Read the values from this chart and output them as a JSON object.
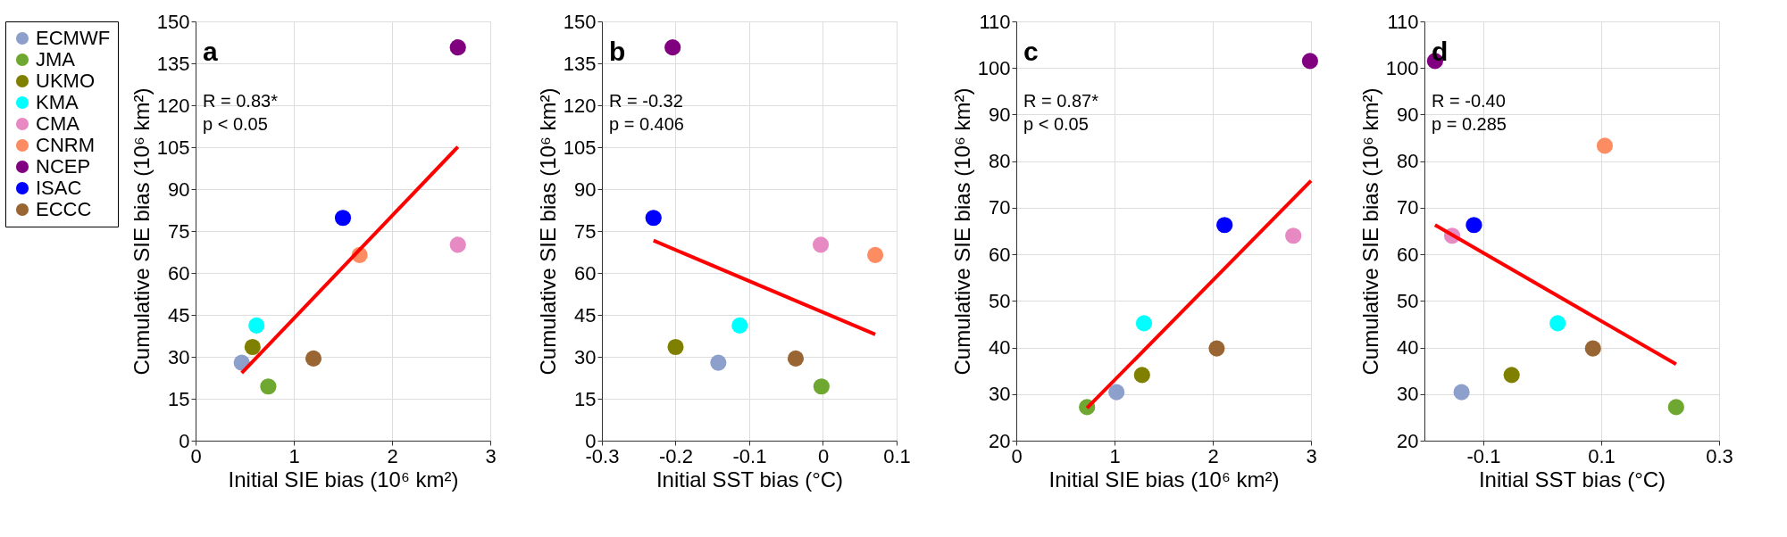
{
  "chart_data": [
    {
      "type": "scatter",
      "xlabel": "Initial SIE bias (10⁶ km²)",
      "ylabel": "Cumulative SIE bias (10⁶ km²)",
      "xlim": [
        0,
        3
      ],
      "ylim": [
        0,
        150
      ],
      "xticks": [
        0,
        1,
        2,
        3
      ],
      "yticks": [
        0,
        15,
        30,
        45,
        60,
        75,
        90,
        105,
        120,
        135,
        150
      ],
      "grid": true,
      "legend": "left",
      "marker": "circle",
      "annotations": [
        "a",
        "R = 0.83*",
        "p < 0.05"
      ],
      "series": [
        {
          "name": "ECMWF",
          "color": "#8da0cb",
          "x": [
            0.47
          ],
          "values": [
            27.9
          ]
        },
        {
          "name": "JMA",
          "color": "#6fa830",
          "x": [
            0.74
          ],
          "values": [
            19.4
          ]
        },
        {
          "name": "UKMO",
          "color": "#7f7f00",
          "x": [
            0.58
          ],
          "values": [
            33.5
          ]
        },
        {
          "name": "KMA",
          "color": "#00ffff",
          "x": [
            0.62
          ],
          "values": [
            41.2
          ]
        },
        {
          "name": "CMA",
          "color": "#e78ac3",
          "x": [
            2.67
          ],
          "values": [
            70.1
          ]
        },
        {
          "name": "CNRM",
          "color": "#fc8d62",
          "x": [
            1.67
          ],
          "values": [
            66.4
          ]
        },
        {
          "name": "NCEP",
          "color": "#800080",
          "x": [
            2.67
          ],
          "values": [
            140.7
          ]
        },
        {
          "name": "ISAC",
          "color": "#0000ff",
          "x": [
            1.5
          ],
          "values": [
            79.7
          ]
        },
        {
          "name": "ECCC",
          "color": "#996633",
          "x": [
            1.2
          ],
          "values": [
            29.4
          ]
        },
        {
          "type": "line",
          "marker": "none",
          "color": "#ff0000",
          "x": [
            0.47,
            2.67
          ],
          "values": [
            24.2,
            105.1
          ]
        }
      ]
    },
    {
      "type": "scatter",
      "xlabel": "Initial SST bias (°C)",
      "ylabel": "Cumulative SIE bias (10⁶ km²)",
      "xlim": [
        -0.3,
        0.1
      ],
      "ylim": [
        0,
        150
      ],
      "xticks": [
        -0.3,
        -0.2,
        -0.1,
        0,
        0.1
      ],
      "yticks": [
        0,
        15,
        30,
        45,
        60,
        75,
        90,
        105,
        120,
        135,
        150
      ],
      "grid": true,
      "marker": "circle",
      "annotations": [
        "b",
        "R = -0.32",
        "p = 0.406"
      ],
      "series": [
        {
          "color": "#8da0cb",
          "x": [
            -0.142
          ],
          "values": [
            27.9
          ]
        },
        {
          "color": "#6fa830",
          "x": [
            -0.002
          ],
          "values": [
            19.4
          ]
        },
        {
          "color": "#7f7f00",
          "x": [
            -0.2
          ],
          "values": [
            33.5
          ]
        },
        {
          "color": "#00ffff",
          "x": [
            -0.113
          ],
          "values": [
            41.2
          ]
        },
        {
          "color": "#e78ac3",
          "x": [
            -0.003
          ],
          "values": [
            70.1
          ]
        },
        {
          "color": "#fc8d62",
          "x": [
            0.071
          ],
          "values": [
            66.4
          ]
        },
        {
          "color": "#800080",
          "x": [
            -0.204
          ],
          "values": [
            140.7
          ]
        },
        {
          "color": "#0000ff",
          "x": [
            -0.23
          ],
          "values": [
            79.7
          ]
        },
        {
          "color": "#996633",
          "x": [
            -0.037
          ],
          "values": [
            29.4
          ]
        },
        {
          "type": "line",
          "marker": "none",
          "color": "#ff0000",
          "x": [
            -0.23,
            0.071
          ],
          "values": [
            71.6,
            38.0
          ]
        }
      ]
    },
    {
      "type": "scatter",
      "xlabel": "Initial SIE bias (10⁶ km²)",
      "ylabel": "Cumulative SIE bias (10⁶ km²)",
      "xlim": [
        0,
        3
      ],
      "ylim": [
        20,
        110
      ],
      "xticks": [
        0,
        1,
        2,
        3
      ],
      "yticks": [
        20,
        30,
        40,
        50,
        60,
        70,
        80,
        90,
        100,
        110
      ],
      "grid": true,
      "marker": "circle",
      "annotations": [
        "c",
        "R = 0.87*",
        "p < 0.05"
      ],
      "series": [
        {
          "color": "#8da0cb",
          "x": [
            1.02
          ],
          "values": [
            30.4
          ]
        },
        {
          "color": "#6fa830",
          "x": [
            0.72
          ],
          "values": [
            27.2
          ]
        },
        {
          "color": "#7f7f00",
          "x": [
            1.28
          ],
          "values": [
            34.1
          ]
        },
        {
          "color": "#00ffff",
          "x": [
            1.3
          ],
          "values": [
            45.2
          ]
        },
        {
          "color": "#e78ac3",
          "x": [
            2.82
          ],
          "values": [
            64.0
          ]
        },
        {
          "color": "#800080",
          "x": [
            2.99
          ],
          "values": [
            101.5
          ]
        },
        {
          "color": "#0000ff",
          "x": [
            2.12
          ],
          "values": [
            66.3
          ]
        },
        {
          "color": "#996633",
          "x": [
            2.04
          ],
          "values": [
            39.8
          ]
        },
        {
          "type": "line",
          "marker": "none",
          "color": "#ff0000",
          "x": [
            0.72,
            3.0
          ],
          "values": [
            27.0,
            75.8
          ]
        }
      ]
    },
    {
      "type": "scatter",
      "xlabel": "Initial SST bias (°C)",
      "ylabel": "Cumulative SIE bias (10⁶ km²)",
      "xlim": [
        -0.2,
        0.3
      ],
      "ylim": [
        20,
        110
      ],
      "xticks": [
        -0.1,
        0.1,
        0.3
      ],
      "yticks": [
        20,
        30,
        40,
        50,
        60,
        70,
        80,
        90,
        100,
        110
      ],
      "grid": true,
      "marker": "circle",
      "annotations": [
        "d",
        "R = -0.40",
        "p = 0.285"
      ],
      "series": [
        {
          "color": "#8da0cb",
          "x": [
            -0.137
          ],
          "values": [
            30.4
          ]
        },
        {
          "color": "#6fa830",
          "x": [
            0.227
          ],
          "values": [
            27.2
          ]
        },
        {
          "color": "#7f7f00",
          "x": [
            -0.052
          ],
          "values": [
            34.1
          ]
        },
        {
          "color": "#00ffff",
          "x": [
            0.026
          ],
          "values": [
            45.2
          ]
        },
        {
          "color": "#e78ac3",
          "x": [
            -0.153
          ],
          "values": [
            64.0
          ]
        },
        {
          "color": "#fc8d62",
          "x": [
            0.106
          ],
          "values": [
            83.3
          ]
        },
        {
          "color": "#800080",
          "x": [
            -0.182
          ],
          "values": [
            101.5
          ]
        },
        {
          "color": "#0000ff",
          "x": [
            -0.116
          ],
          "values": [
            66.3
          ]
        },
        {
          "color": "#996633",
          "x": [
            0.086
          ],
          "values": [
            39.8
          ]
        },
        {
          "type": "line",
          "marker": "none",
          "color": "#ff0000",
          "x": [
            -0.182,
            0.227
          ],
          "values": [
            66.3,
            36.4
          ]
        }
      ]
    }
  ]
}
